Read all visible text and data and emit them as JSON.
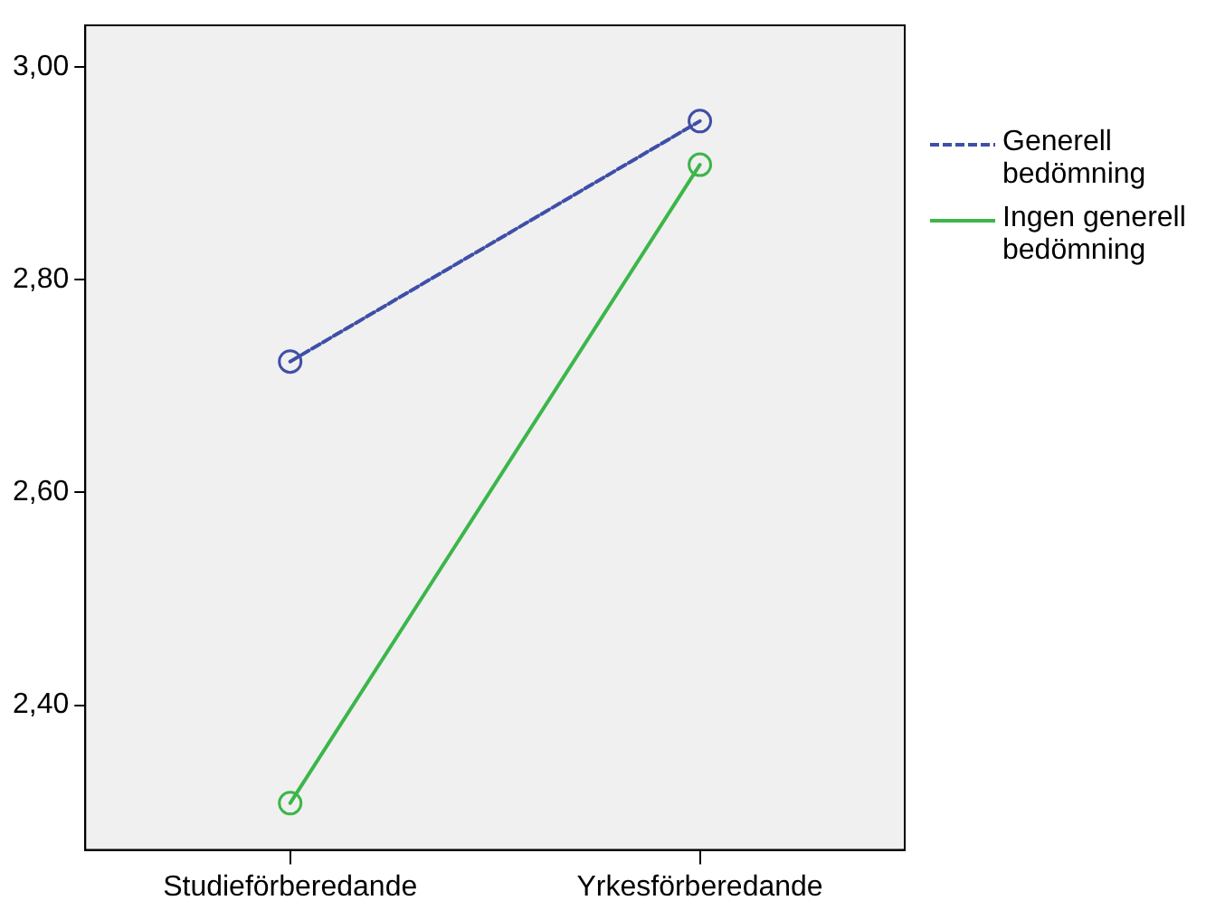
{
  "chart_data": {
    "type": "line",
    "categories": [
      "Studieförberedande",
      "Yrkesförberedande"
    ],
    "series": [
      {
        "name": "Generell bedömning",
        "color": "#3f4fa8",
        "values": [
          2.723,
          2.949
        ],
        "line_style": "dashed"
      },
      {
        "name": "Ingen generell bedömning",
        "color": "#3cb64a",
        "values": [
          2.308,
          2.908
        ],
        "line_style": "solid"
      }
    ],
    "ylim": [
      2.264,
      3.039
    ],
    "yticks": [
      {
        "value": 2.4,
        "label": "2,40"
      },
      {
        "value": 2.6,
        "label": "2,60"
      },
      {
        "value": 2.8,
        "label": "2,80"
      },
      {
        "value": 3.0,
        "label": "3,00"
      }
    ],
    "grid": false,
    "legend": "right",
    "marker": "circle"
  }
}
